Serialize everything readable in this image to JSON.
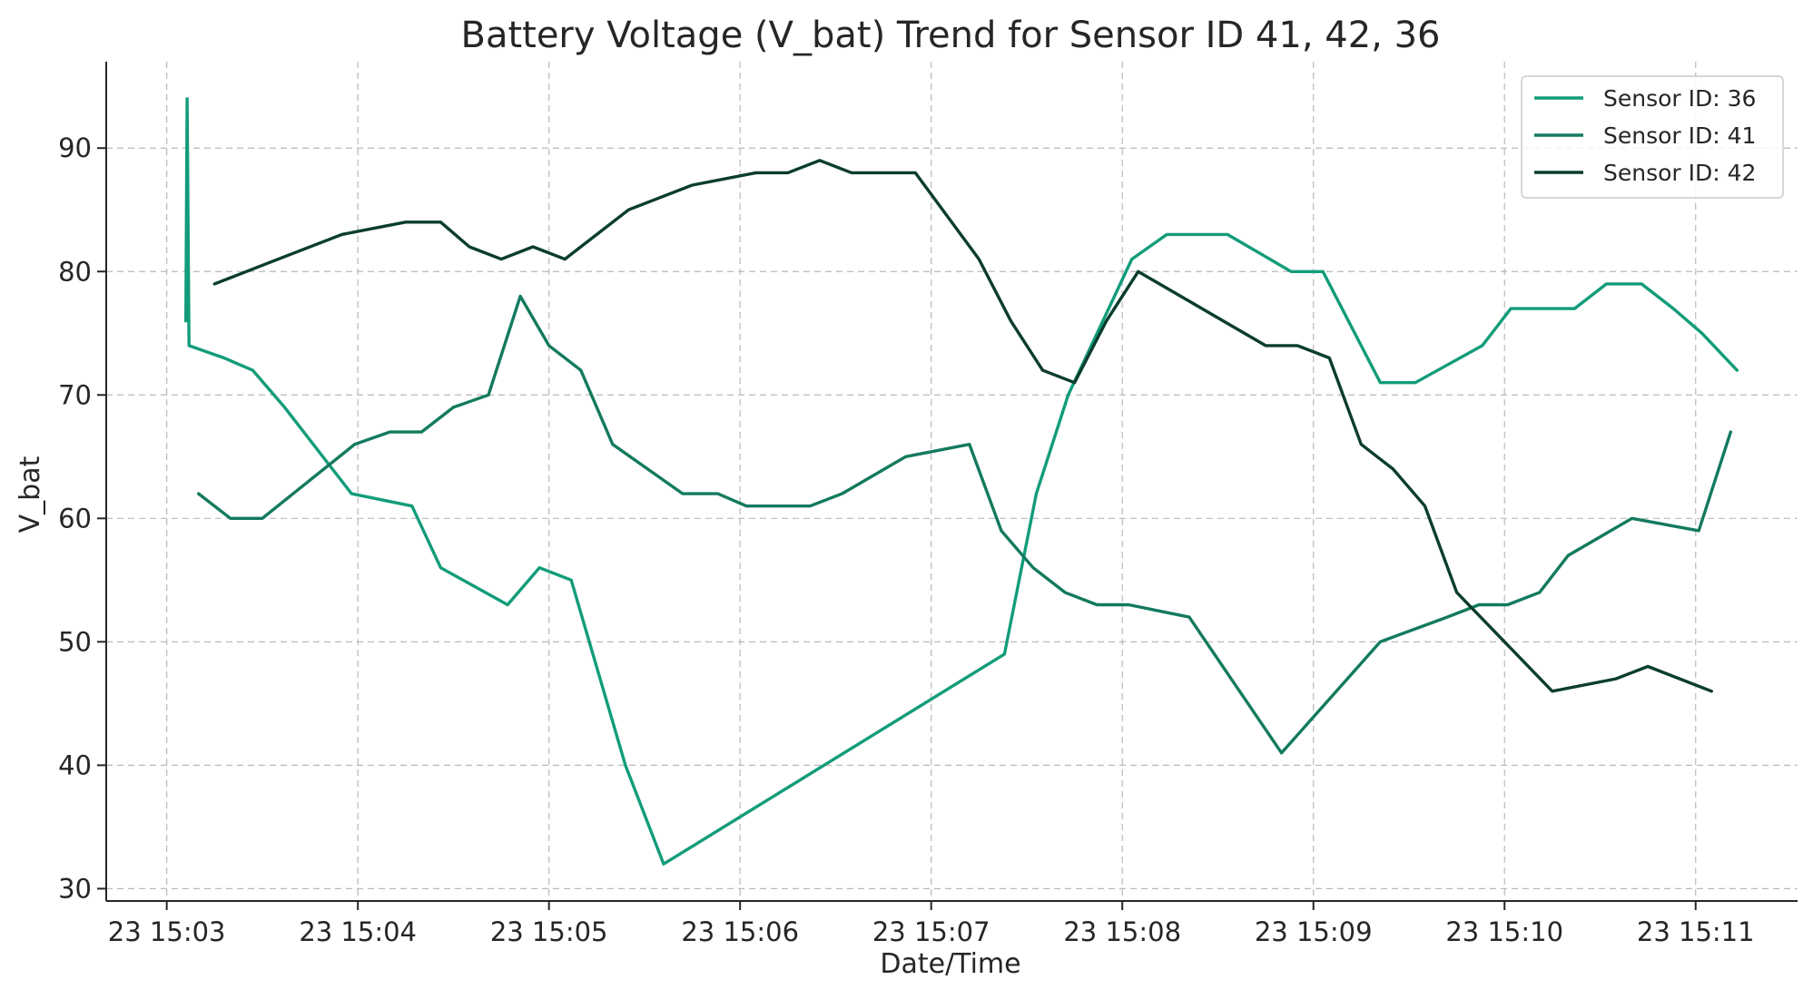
{
  "chart_data": {
    "type": "line",
    "title": "Battery Voltage (V_bat) Trend for Sensor ID 41, 42, 36",
    "xlabel": "Date/Time",
    "ylabel": "V_bat",
    "x_range": [
      "23 15:02:41",
      "23 15:11:32"
    ],
    "ylim": [
      29,
      97
    ],
    "x_ticks": [
      {
        "time": "15:03:00",
        "label": "23 15:03"
      },
      {
        "time": "15:04:00",
        "label": "23 15:04"
      },
      {
        "time": "15:05:00",
        "label": "23 15:05"
      },
      {
        "time": "15:06:00",
        "label": "23 15:06"
      },
      {
        "time": "15:07:00",
        "label": "23 15:07"
      },
      {
        "time": "15:08:00",
        "label": "23 15:08"
      },
      {
        "time": "15:09:00",
        "label": "23 15:09"
      },
      {
        "time": "15:10:00",
        "label": "23 15:10"
      },
      {
        "time": "15:11:00",
        "label": "23 15:11"
      }
    ],
    "y_ticks": [
      30,
      40,
      50,
      60,
      70,
      80,
      90
    ],
    "grid": true,
    "legend_position": "top-right",
    "series": [
      {
        "name": "Sensor ID: 36",
        "color": "#129c7a",
        "points": [
          [
            "15:03:06",
            76
          ],
          [
            "15:03:06.4",
            94
          ],
          [
            "15:03:07",
            74
          ],
          [
            "15:03:18",
            73
          ],
          [
            "15:03:27",
            72
          ],
          [
            "15:03:37",
            69
          ],
          [
            "15:03:58",
            62
          ],
          [
            "15:04:17",
            61
          ],
          [
            "15:04:26",
            56
          ],
          [
            "15:04:47",
            53
          ],
          [
            "15:04:57",
            56
          ],
          [
            "15:05:07",
            55
          ],
          [
            "15:05:24",
            40
          ],
          [
            "15:05:36",
            32
          ],
          [
            "15:07:23",
            49
          ],
          [
            "15:07:33",
            62
          ],
          [
            "15:07:43",
            70
          ],
          [
            "15:08:03",
            81
          ],
          [
            "15:08:14",
            83
          ],
          [
            "15:08:33",
            83
          ],
          [
            "15:08:53",
            80
          ],
          [
            "15:09:03",
            80
          ],
          [
            "15:09:13",
            75
          ],
          [
            "15:09:21",
            71
          ],
          [
            "15:09:32",
            71
          ],
          [
            "15:09:53",
            74
          ],
          [
            "15:10:02",
            77
          ],
          [
            "15:10:22",
            77
          ],
          [
            "15:10:32",
            79
          ],
          [
            "15:10:43",
            79
          ],
          [
            "15:10:53",
            77
          ],
          [
            "15:11:02",
            75
          ],
          [
            "15:11:13",
            72
          ]
        ]
      },
      {
        "name": "Sensor ID: 41",
        "color": "#137a5e",
        "points": [
          [
            "15:03:10",
            62
          ],
          [
            "15:03:20",
            60
          ],
          [
            "15:03:30",
            60
          ],
          [
            "15:03:59",
            66
          ],
          [
            "15:04:10",
            67
          ],
          [
            "15:04:20",
            67
          ],
          [
            "15:04:30",
            69
          ],
          [
            "15:04:41",
            70
          ],
          [
            "15:04:51",
            78
          ],
          [
            "15:05:00",
            74
          ],
          [
            "15:05:10",
            72
          ],
          [
            "15:05:20",
            66
          ],
          [
            "15:05:42",
            62
          ],
          [
            "15:05:53",
            62
          ],
          [
            "15:06:02",
            61
          ],
          [
            "15:06:22",
            61
          ],
          [
            "15:06:32",
            62
          ],
          [
            "15:06:52",
            65
          ],
          [
            "15:07:12",
            66
          ],
          [
            "15:07:22",
            59
          ],
          [
            "15:07:32",
            56
          ],
          [
            "15:07:42",
            54
          ],
          [
            "15:07:52",
            53
          ],
          [
            "15:08:02",
            53
          ],
          [
            "15:08:21",
            52
          ],
          [
            "15:08:50",
            41
          ],
          [
            "15:09:21",
            50
          ],
          [
            "15:09:42",
            52
          ],
          [
            "15:09:52",
            53
          ],
          [
            "15:10:01",
            53
          ],
          [
            "15:10:11",
            54
          ],
          [
            "15:10:20",
            57
          ],
          [
            "15:10:40",
            60
          ],
          [
            "15:11:01",
            59
          ],
          [
            "15:11:11",
            67
          ]
        ]
      },
      {
        "name": "Sensor ID: 42",
        "color": "#0b3d2e",
        "points": [
          [
            "15:03:15",
            79
          ],
          [
            "15:03:35",
            81
          ],
          [
            "15:03:55",
            83
          ],
          [
            "15:04:15",
            84
          ],
          [
            "15:04:26",
            84
          ],
          [
            "15:04:35",
            82
          ],
          [
            "15:04:45",
            81
          ],
          [
            "15:04:55",
            82
          ],
          [
            "15:05:05",
            81
          ],
          [
            "15:05:25",
            85
          ],
          [
            "15:05:45",
            87
          ],
          [
            "15:06:05",
            88
          ],
          [
            "15:06:15",
            88
          ],
          [
            "15:06:25",
            89
          ],
          [
            "15:06:35",
            88
          ],
          [
            "15:06:55",
            88
          ],
          [
            "15:07:15",
            81
          ],
          [
            "15:07:25",
            76
          ],
          [
            "15:07:35",
            72
          ],
          [
            "15:07:45",
            71
          ],
          [
            "15:07:55",
            76
          ],
          [
            "15:08:05",
            80
          ],
          [
            "15:08:45",
            74
          ],
          [
            "15:08:55",
            74
          ],
          [
            "15:09:05",
            73
          ],
          [
            "15:09:15",
            66
          ],
          [
            "15:09:25",
            64
          ],
          [
            "15:09:35",
            61
          ],
          [
            "15:09:45",
            54
          ],
          [
            "15:10:15",
            46
          ],
          [
            "15:10:35",
            47
          ],
          [
            "15:10:45",
            48
          ],
          [
            "15:11:05",
            46
          ]
        ]
      }
    ]
  }
}
